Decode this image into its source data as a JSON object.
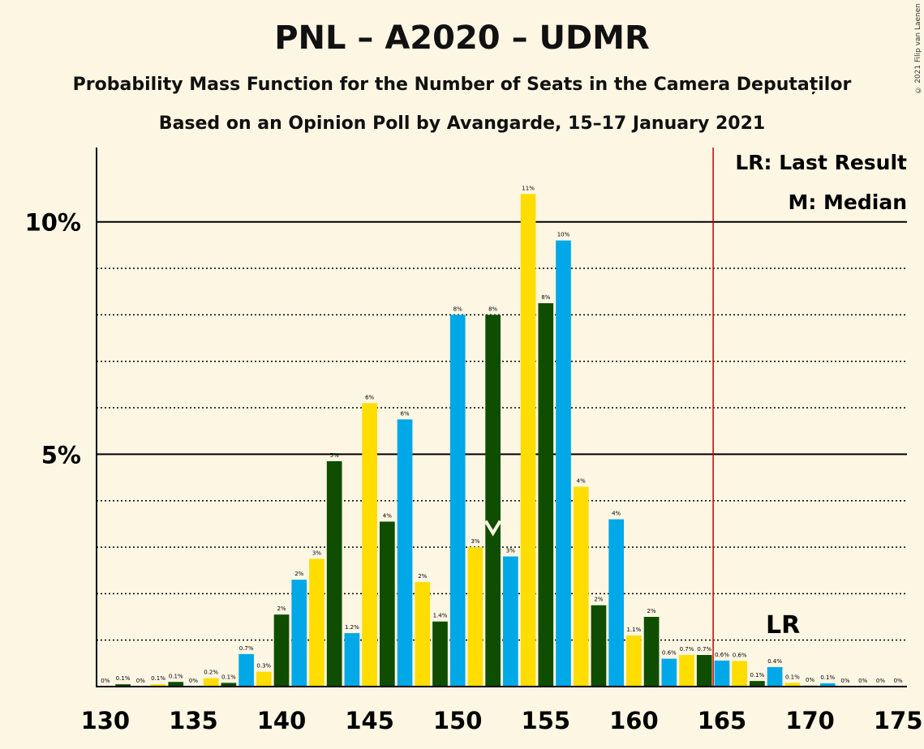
{
  "title": "PNL – A2020 – UDMR",
  "subtitle": "Probability Mass Function for the Number of Seats in the Camera Deputaților",
  "subtitle2": "Based on an Opinion Poll by Avangarde, 15–17 January 2021",
  "copyright": "© 2021 Filip van Laenen",
  "legend": {
    "lr": "LR: Last Result",
    "median": "M: Median",
    "lr_marker": "LR"
  },
  "colors": {
    "blue": "#00A8E8",
    "green": "#0F4D00",
    "yellow": "#FFDD00",
    "majority_line": "#CC0000"
  },
  "chart_data": {
    "type": "bar",
    "x": [
      130,
      131,
      132,
      133,
      134,
      135,
      136,
      137,
      138,
      139,
      140,
      141,
      142,
      143,
      144,
      145,
      146,
      147,
      148,
      149,
      150,
      151,
      152,
      153,
      154,
      155,
      156,
      157,
      158,
      159,
      160,
      161,
      162,
      163,
      164,
      165,
      166,
      167,
      168,
      169,
      170,
      171,
      172,
      173,
      174,
      175
    ],
    "values": [
      0.0,
      0.05,
      0.0,
      0.05,
      0.1,
      0.0,
      0.18,
      0.08,
      0.7,
      0.32,
      1.55,
      2.3,
      2.75,
      4.85,
      1.15,
      6.1,
      3.55,
      5.75,
      2.25,
      1.4,
      8.0,
      3.0,
      8.0,
      2.8,
      10.6,
      8.25,
      9.6,
      4.3,
      1.75,
      3.6,
      1.1,
      1.5,
      0.6,
      0.68,
      0.68,
      0.56,
      0.55,
      0.12,
      0.42,
      0.08,
      0.02,
      0.07,
      0.0,
      0.0,
      0.0,
      0.0
    ],
    "labels": [
      "0%",
      "0.1%",
      "0%",
      "0.1%",
      "0.1%",
      "0%",
      "0.2%",
      "0.1%",
      "0.7%",
      "0.3%",
      "2%",
      "2%",
      "3%",
      "5%",
      "1.2%",
      "6%",
      "4%",
      "6%",
      "2%",
      "1.4%",
      "8%",
      "3%",
      "8%",
      "3%",
      "11%",
      "8%",
      "10%",
      "4%",
      "2%",
      "4%",
      "1.1%",
      "2%",
      "0.6%",
      "0.7%",
      "0.7%",
      "0.6%",
      "0.6%",
      "0.1%",
      "0.4%",
      "0.1%",
      "0%",
      "0.1%",
      "0%",
      "0%",
      "0%",
      "0%"
    ],
    "color_cycle": [
      "yellow",
      "green",
      "blue"
    ],
    "yticks": [
      {
        "value": 5,
        "label": "5%"
      },
      {
        "value": 10,
        "label": "10%"
      }
    ],
    "yminor": [
      1,
      2,
      3,
      4,
      6,
      7,
      8,
      9
    ],
    "xticks": [
      130,
      135,
      140,
      145,
      150,
      155,
      160,
      165,
      170,
      175
    ],
    "ylim": [
      0,
      11.6
    ],
    "xlim": [
      129.5,
      175.5
    ],
    "majority_line": 164.5,
    "median": 152,
    "last_result": 168
  }
}
